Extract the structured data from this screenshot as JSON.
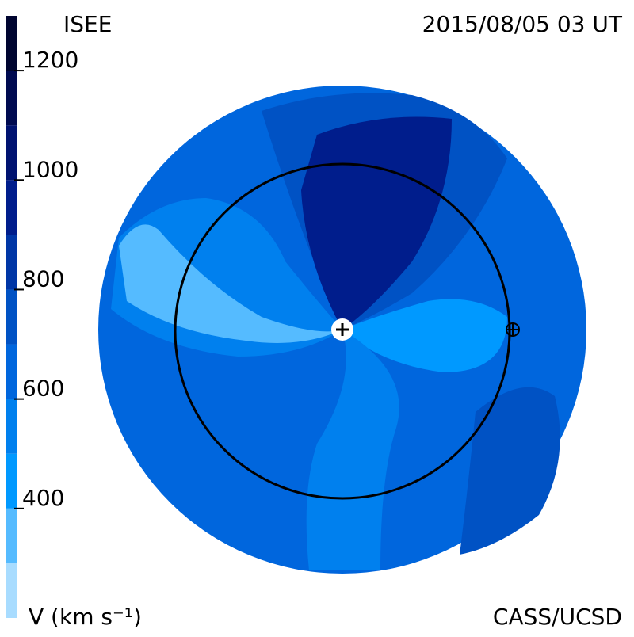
{
  "chart_data": {
    "type": "contour",
    "title": "ISEE",
    "subtitle": "2015/08/05 03 UT",
    "colorbar_label": "V (km s⁻¹)",
    "credit": "CASS/UCSD",
    "clim": [
      200,
      1300
    ],
    "cticks": [
      400,
      600,
      800,
      1000,
      1200
    ],
    "levels": [
      200,
      300,
      400,
      500,
      600,
      700,
      800,
      900,
      1000,
      1100,
      1200,
      1300
    ],
    "colors": [
      "#a8dcff",
      "#55bbff",
      "#0099ff",
      "#0080ee",
      "#0066dd",
      "#0052c4",
      "#0036a6",
      "#001d8c",
      "#001270",
      "#000a50",
      "#000530"
    ]
  }
}
